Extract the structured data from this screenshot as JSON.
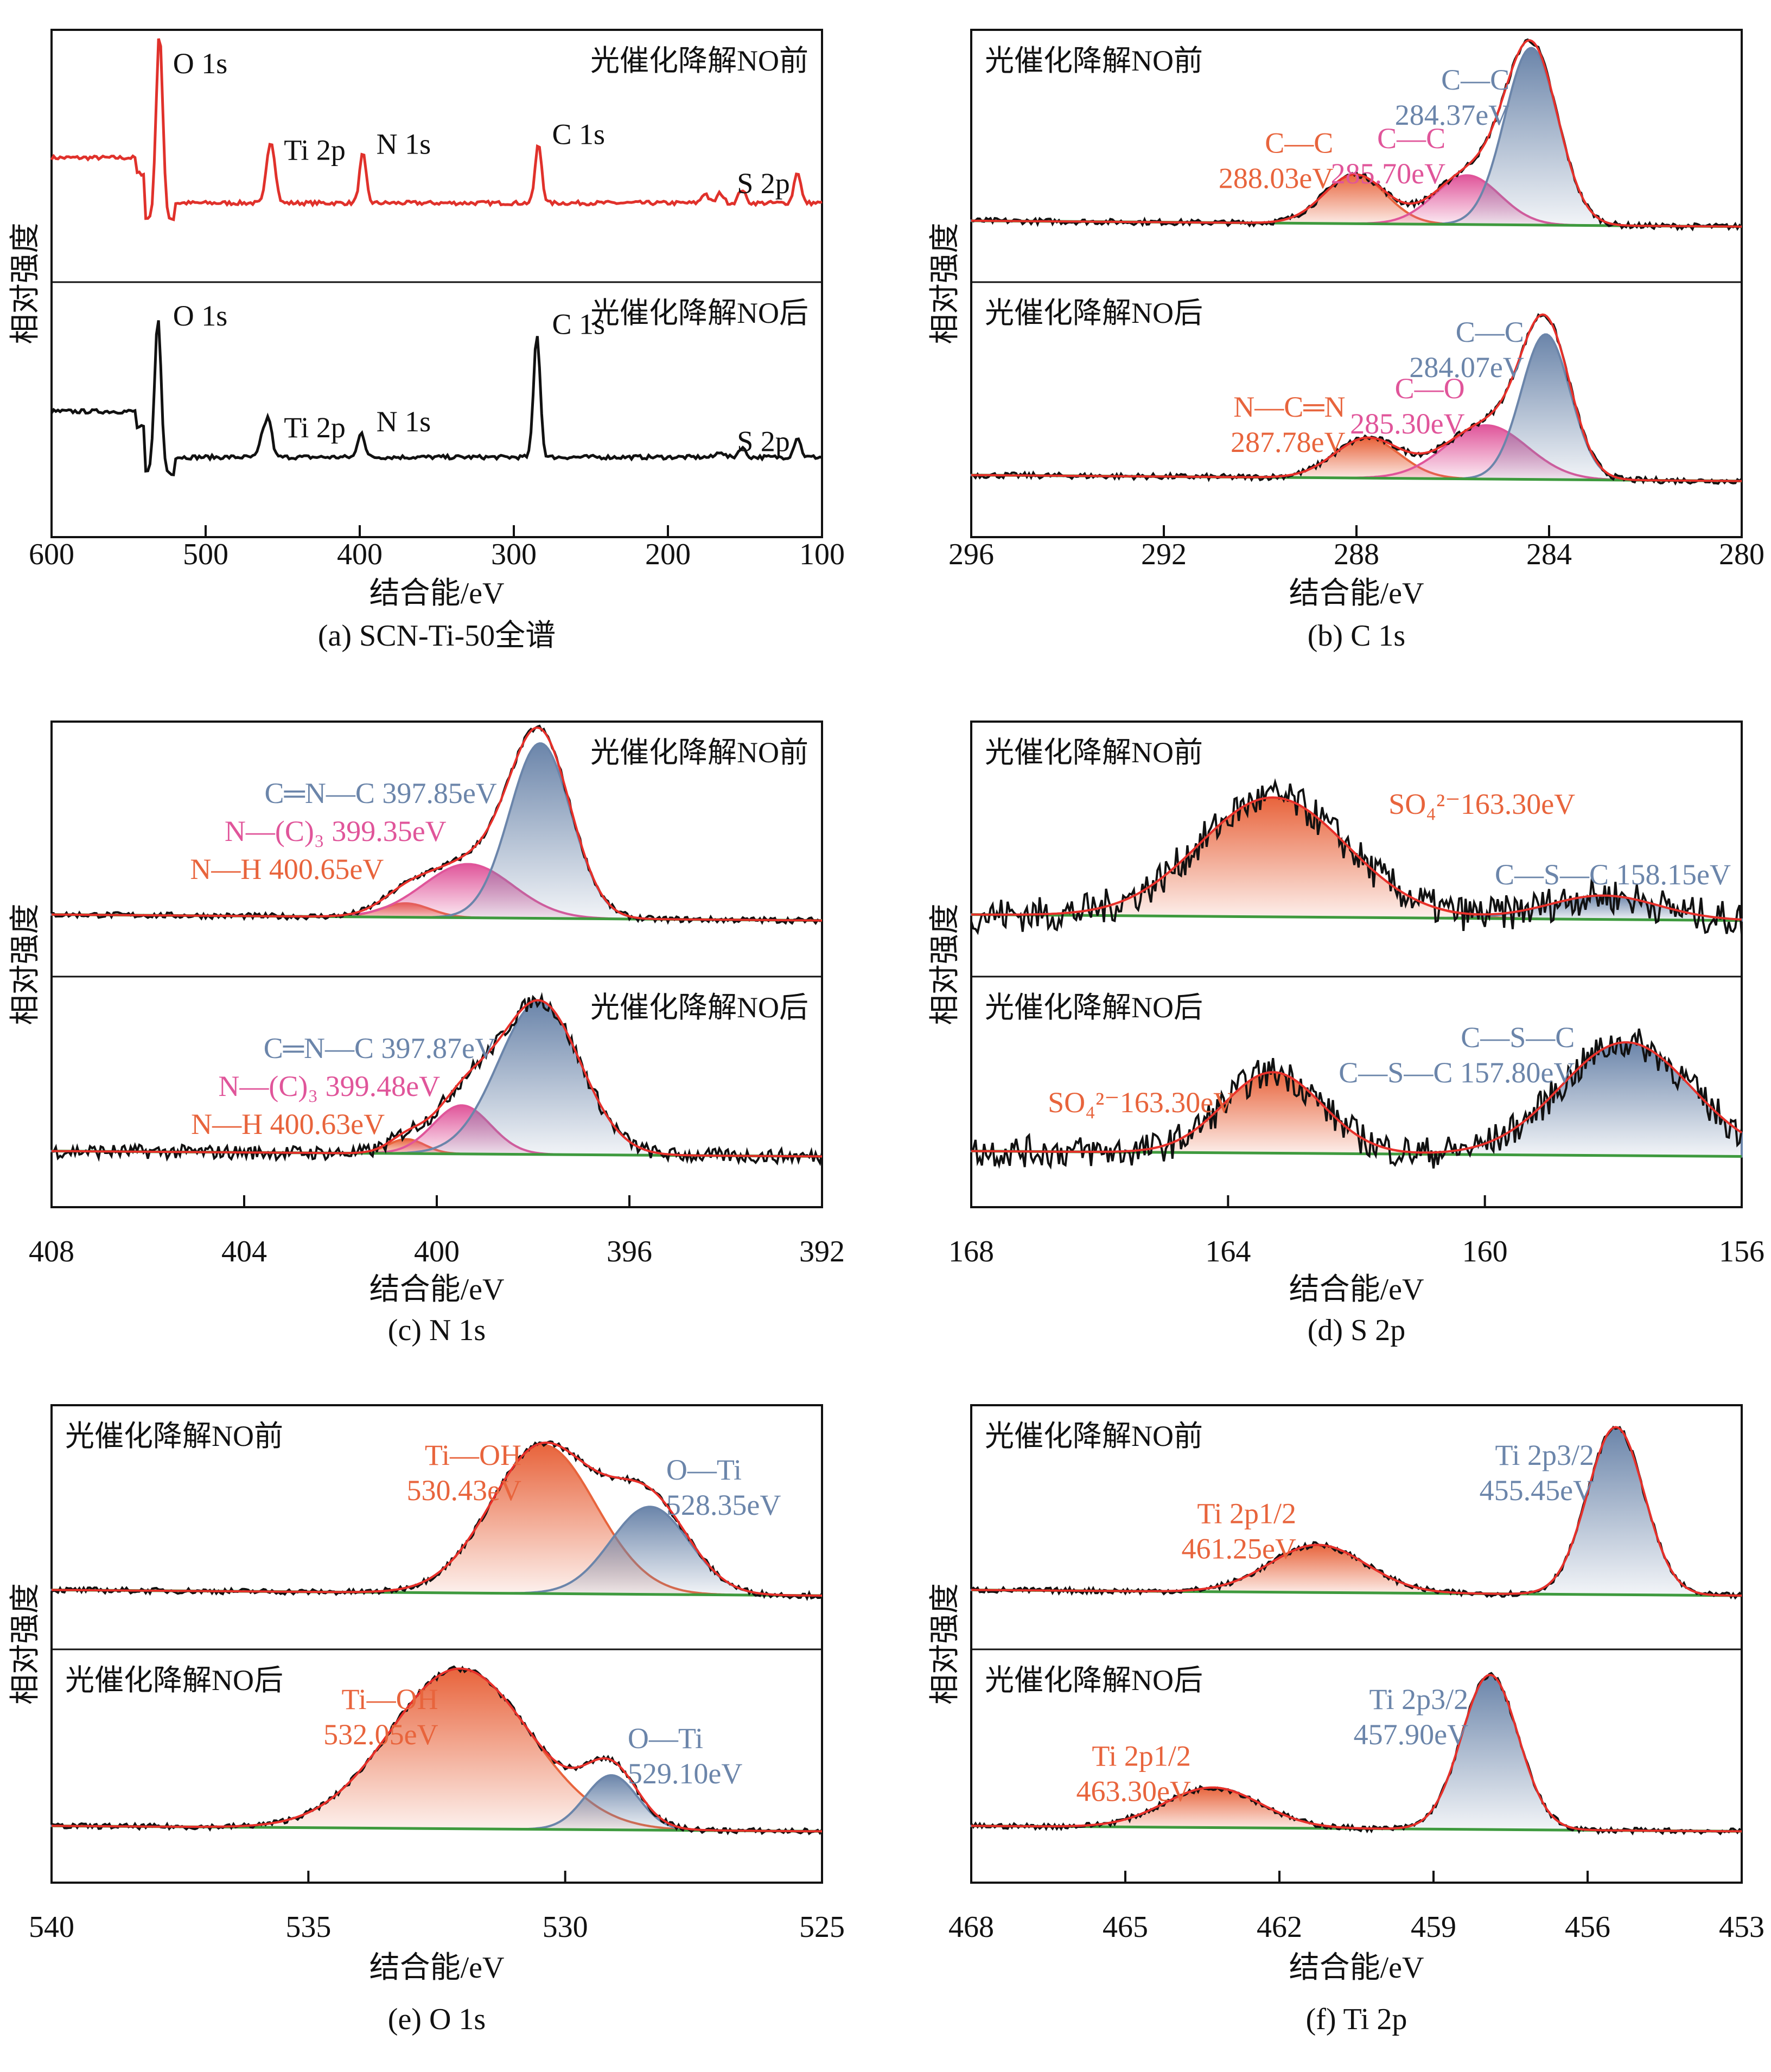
{
  "figure": {
    "y_axis_label": "相对强度",
    "x_axis_label": "结合能/eV",
    "state_before": "光催化降解NO前",
    "state_after": "光催化降解NO后",
    "colors": {
      "survey_before": "#e0312b",
      "survey_after": "#111111",
      "raw": "#111111",
      "envelope": "#e8302a",
      "blue": "#6b85aa",
      "pink": "#e0559a",
      "orange": "#e8643c",
      "baseline": "#3e9a3e"
    }
  },
  "chart_data": [
    {
      "id": "a",
      "type": "line",
      "caption": "(a) SCN-Ti-50全谱",
      "title": "SCN-Ti-50全谱",
      "xlabel": "结合能/eV",
      "ylabel": "相对强度",
      "xlim": [
        600,
        100
      ],
      "xticks": [
        600,
        500,
        400,
        300,
        200,
        100
      ],
      "grid": false,
      "subplots": [
        {
          "state": "光催化降解NO前",
          "series_color": "survey_before",
          "annotations": [
            {
              "text": "O 1s",
              "x": 530
            },
            {
              "text": "Ti 2p",
              "x": 458
            },
            {
              "text": "N 1s",
              "x": 398
            },
            {
              "text": "C 1s",
              "x": 284
            },
            {
              "text": "S 2p",
              "x": 164
            }
          ],
          "peaks": [
            {
              "x": 530,
              "h": 0.95
            },
            {
              "x": 459,
              "h": 0.22
            },
            {
              "x": 456,
              "h": 0.18
            },
            {
              "x": 398,
              "h": 0.25
            },
            {
              "x": 284,
              "h": 0.3
            },
            {
              "x": 176,
              "h": 0.05
            },
            {
              "x": 166,
              "h": 0.05
            },
            {
              "x": 152,
              "h": 0.07
            },
            {
              "x": 116,
              "h": 0.16
            }
          ]
        },
        {
          "state": "光催化降解NO后",
          "series_color": "survey_after",
          "annotations": [
            {
              "text": "O 1s",
              "x": 530
            },
            {
              "text": "Ti 2p",
              "x": 458
            },
            {
              "text": "N 1s",
              "x": 398
            },
            {
              "text": "C 1s",
              "x": 284
            },
            {
              "text": "S 2p",
              "x": 164
            }
          ],
          "peaks": [
            {
              "x": 531,
              "h": 0.78
            },
            {
              "x": 463,
              "h": 0.1
            },
            {
              "x": 459,
              "h": 0.18
            },
            {
              "x": 399,
              "h": 0.13
            },
            {
              "x": 285,
              "h": 0.62
            },
            {
              "x": 166,
              "h": 0.03
            },
            {
              "x": 152,
              "h": 0.05
            },
            {
              "x": 116,
              "h": 0.1
            }
          ]
        }
      ]
    },
    {
      "id": "b",
      "type": "area",
      "caption": "(b) C 1s",
      "title": "C 1s",
      "xlabel": "结合能/eV",
      "ylabel": "相对强度",
      "xlim": [
        296,
        280
      ],
      "xticks": [
        296,
        292,
        288,
        284,
        280
      ],
      "grid": false,
      "subplots": [
        {
          "state": "光催化降解NO前",
          "state_pos": "top-left",
          "components": [
            {
              "name": "C—C",
              "position_eV": 288.03,
              "label": "288.03eV",
              "color": "orange",
              "height": 0.25,
              "fwhm": 1.5
            },
            {
              "name": "C—C",
              "position_eV": 285.7,
              "label": "285.70eV",
              "color": "pink",
              "height": 0.25,
              "fwhm": 1.6
            },
            {
              "name": "C—C",
              "position_eV": 284.37,
              "label": "284.37eV",
              "color": "blue",
              "height": 0.9,
              "fwhm": 1.3
            }
          ]
        },
        {
          "state": "光催化降解NO后",
          "state_pos": "top-left",
          "components": [
            {
              "name": "N—C═N",
              "position_eV": 287.78,
              "label": "287.78eV",
              "color": "orange",
              "height": 0.2,
              "fwhm": 1.6
            },
            {
              "name": "C—O",
              "position_eV": 285.3,
              "label": "285.30eV",
              "color": "pink",
              "height": 0.27,
              "fwhm": 2.0
            },
            {
              "name": "C—C",
              "position_eV": 284.07,
              "label": "284.07eV",
              "color": "blue",
              "height": 0.73,
              "fwhm": 1.2
            }
          ]
        }
      ]
    },
    {
      "id": "c",
      "type": "area",
      "caption": "(c) N 1s",
      "title": "N 1s",
      "xlabel": "结合能/eV",
      "ylabel": "相对强度",
      "xlim": [
        408,
        392
      ],
      "xticks": [
        408,
        404,
        400,
        396,
        392
      ],
      "grid": false,
      "subplots": [
        {
          "state": "光催化降解NO前",
          "state_pos": "top-right",
          "components": [
            {
              "name": "N—H",
              "position_eV": 400.65,
              "label": "N—H 400.65eV",
              "color": "orange",
              "height": 0.07,
              "fwhm": 1.2
            },
            {
              "name": "N—(C)₃",
              "position_eV": 399.35,
              "label": "N—(C)₃ 399.35eV",
              "color": "pink",
              "height": 0.27,
              "fwhm": 2.2
            },
            {
              "name": "C═N—C",
              "position_eV": 397.85,
              "label": "C═N—C 397.85eV",
              "color": "blue",
              "height": 0.88,
              "fwhm": 1.5
            }
          ]
        },
        {
          "state": "光催化降解NO后",
          "state_pos": "top-right",
          "components": [
            {
              "name": "N—H",
              "position_eV": 400.63,
              "label": "N—H 400.63eV",
              "color": "orange",
              "height": 0.08,
              "fwhm": 0.9
            },
            {
              "name": "N—(C)₃",
              "position_eV": 399.48,
              "label": "N—(C)₃ 399.48eV",
              "color": "pink",
              "height": 0.27,
              "fwhm": 1.4
            },
            {
              "name": "C═N—C",
              "position_eV": 397.87,
              "label": "C═N—C 397.87eV",
              "color": "blue",
              "height": 0.85,
              "fwhm": 2.0
            }
          ]
        }
      ]
    },
    {
      "id": "d",
      "type": "area",
      "caption": "(d) S 2p",
      "title": "S 2p",
      "xlabel": "结合能/eV",
      "ylabel": "相对强度",
      "xlim": [
        168,
        156
      ],
      "xticks": [
        168,
        164,
        160,
        156
      ],
      "grid": false,
      "subplots": [
        {
          "state": "光催化降解NO前",
          "state_pos": "top-left",
          "components": [
            {
              "name": "SO₄²⁻",
              "position_eV": 163.3,
              "label": "SO₄²⁻163.30eV",
              "color": "orange",
              "height": 0.6,
              "fwhm": 2.7
            },
            {
              "name": "C—S—C",
              "position_eV": 158.15,
              "label": "C—S—C 158.15eV",
              "color": "blue",
              "height": 0.12,
              "fwhm": 2.0
            }
          ]
        },
        {
          "state": "光催化降解NO后",
          "state_pos": "top-left",
          "components": [
            {
              "name": "SO₄²⁻",
              "position_eV": 163.3,
              "label": "SO₄²⁻163.30eV",
              "color": "orange",
              "height": 0.45,
              "fwhm": 1.8
            },
            {
              "name": "C—S—C",
              "position_eV": 157.8,
              "label": "C—S—C 157.80eV",
              "color": "blue",
              "height": 0.63,
              "fwhm": 2.4
            }
          ]
        }
      ]
    },
    {
      "id": "e",
      "type": "area",
      "caption": "(e) O 1s",
      "title": "O 1s",
      "xlabel": "结合能/eV",
      "ylabel": "相对强度",
      "xlim": [
        540,
        525
      ],
      "xticks": [
        540,
        535,
        530,
        525
      ],
      "grid": false,
      "subplots": [
        {
          "state": "光催化降解NO前",
          "state_pos": "top-left",
          "components": [
            {
              "name": "Ti—OH",
              "position_eV": 530.43,
              "label": "530.43eV",
              "color": "orange",
              "height": 0.78,
              "fwhm": 2.4
            },
            {
              "name": "O—Ti",
              "position_eV": 528.35,
              "label": "528.35eV",
              "color": "blue",
              "height": 0.46,
              "fwhm": 1.8
            }
          ]
        },
        {
          "state": "光催化降解NO后",
          "state_pos": "top-left",
          "components": [
            {
              "name": "Ti—OH",
              "position_eV": 532.05,
              "label": "532.05eV",
              "color": "orange",
              "height": 0.88,
              "fwhm": 3.2
            },
            {
              "name": "O—Ti",
              "position_eV": 529.1,
              "label": "529.10eV",
              "color": "blue",
              "height": 0.3,
              "fwhm": 1.2
            }
          ]
        }
      ]
    },
    {
      "id": "f",
      "type": "area",
      "caption": "(f) Ti 2p",
      "title": "Ti 2p",
      "xlabel": "结合能/eV",
      "ylabel": "相对强度",
      "xlim": [
        468,
        453
      ],
      "xticks": [
        468,
        465,
        462,
        459,
        456,
        453
      ],
      "grid": false,
      "subplots": [
        {
          "state": "光催化降解NO前",
          "state_pos": "top-left",
          "components": [
            {
              "name": "Ti 2p1/2",
              "position_eV": 461.25,
              "label": "461.25eV",
              "color": "orange",
              "height": 0.25,
              "fwhm": 2.2
            },
            {
              "name": "Ti 2p3/2",
              "position_eV": 455.45,
              "label": "455.45eV",
              "color": "blue",
              "height": 0.88,
              "fwhm": 1.3
            }
          ]
        },
        {
          "state": "光催化降解NO后",
          "state_pos": "top-left",
          "components": [
            {
              "name": "Ti 2p1/2",
              "position_eV": 463.3,
              "label": "463.30eV",
              "color": "orange",
              "height": 0.22,
              "fwhm": 2.2
            },
            {
              "name": "Ti 2p3/2",
              "position_eV": 457.9,
              "label": "457.90eV",
              "color": "blue",
              "height": 0.85,
              "fwhm": 1.3
            }
          ]
        }
      ]
    }
  ]
}
